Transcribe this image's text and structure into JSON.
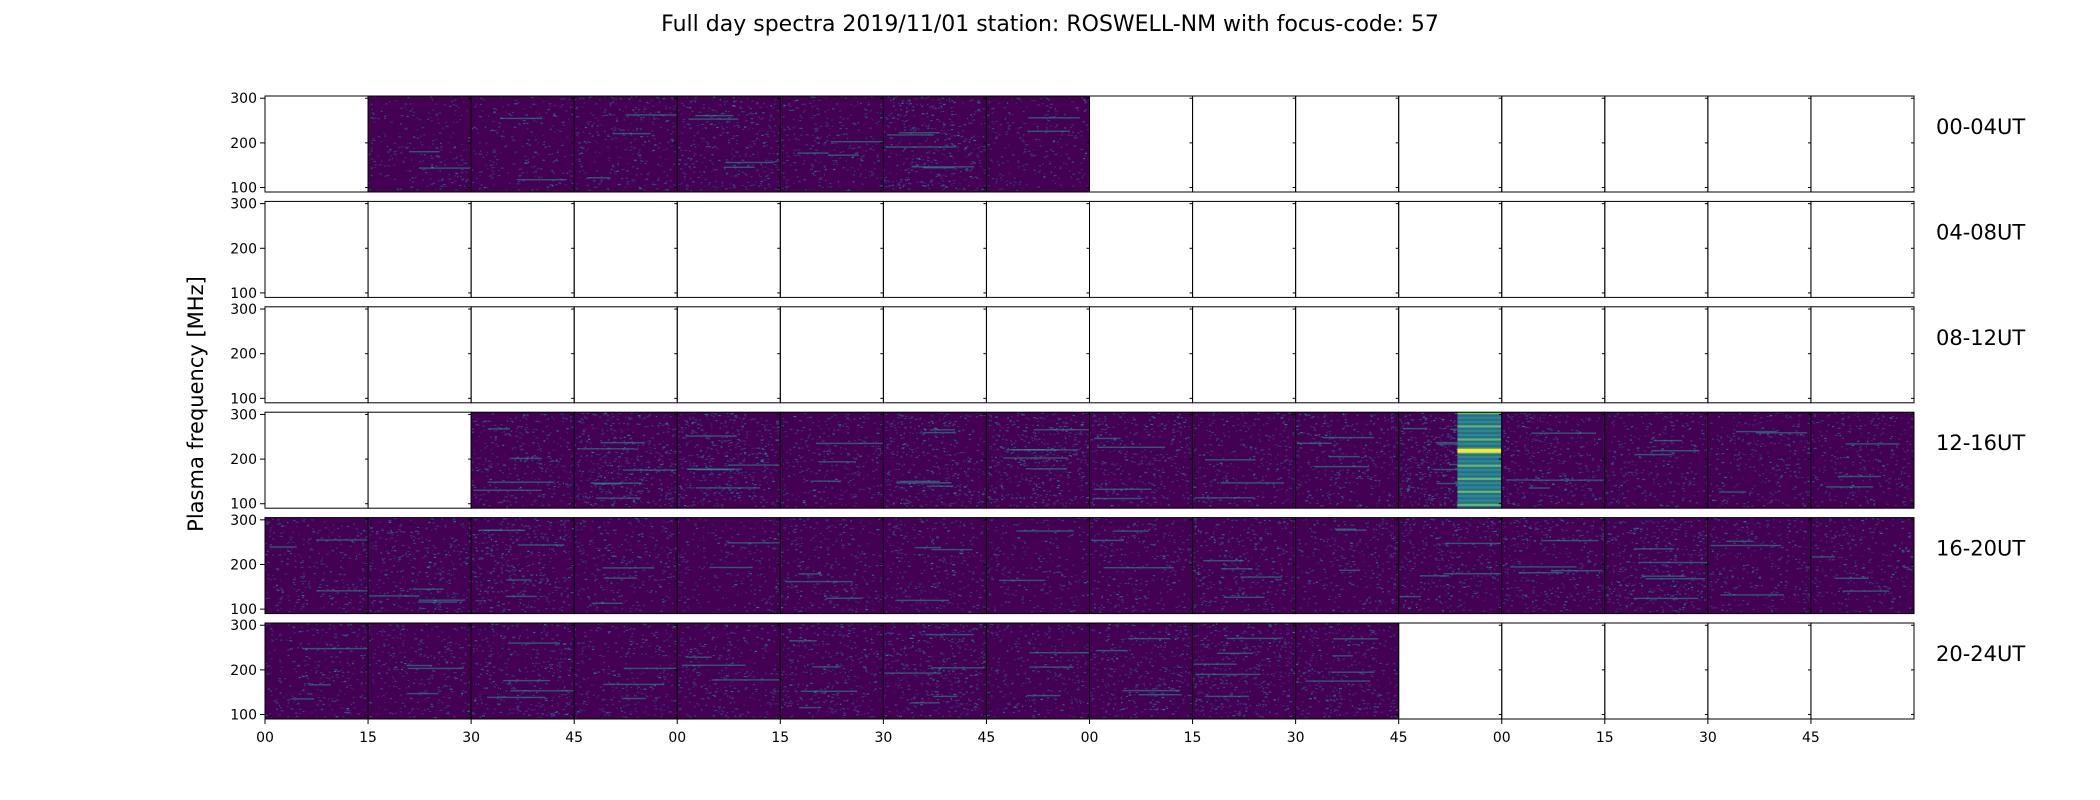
{
  "chart_data": {
    "type": "heatmap",
    "title": "Full day spectra 2019/11/01 station: ROSWELL-NM with focus-code: 57",
    "ylabel": "Plasma frequency [MHz]",
    "xlabel": "",
    "yticks": [
      "300",
      "200",
      "100"
    ],
    "ylim": [
      90,
      305
    ],
    "xtick_labels": [
      "00",
      "15",
      "30",
      "45",
      "00",
      "15",
      "30",
      "45",
      "00",
      "15",
      "30",
      "45",
      "00",
      "15",
      "30",
      "45"
    ],
    "panels_per_row": 16,
    "panel_minutes": 15,
    "rows": [
      {
        "label": "00-04UT",
        "filled": [
          0,
          1,
          1,
          1,
          1,
          1,
          1,
          1,
          0,
          0,
          0,
          0,
          0,
          0,
          0,
          0
        ],
        "variant": [
          0,
          0,
          0,
          1,
          2,
          1,
          3,
          0,
          0,
          0,
          0,
          0,
          0,
          0,
          0,
          0
        ]
      },
      {
        "label": "04-08UT",
        "filled": [
          0,
          0,
          0,
          0,
          0,
          0,
          0,
          0,
          0,
          0,
          0,
          0,
          0,
          0,
          0,
          0
        ],
        "variant": [
          0,
          0,
          0,
          0,
          0,
          0,
          0,
          0,
          0,
          0,
          0,
          0,
          0,
          0,
          0,
          0
        ]
      },
      {
        "label": "08-12UT",
        "filled": [
          0,
          0,
          0,
          0,
          0,
          0,
          0,
          0,
          0,
          0,
          0,
          0,
          0,
          0,
          0,
          0
        ],
        "variant": [
          0,
          0,
          0,
          0,
          0,
          0,
          0,
          0,
          0,
          0,
          0,
          0,
          0,
          0,
          0,
          0
        ]
      },
      {
        "label": "12-16UT",
        "filled": [
          0,
          0,
          1,
          1,
          1,
          1,
          1,
          1,
          1,
          1,
          1,
          1,
          1,
          1,
          1,
          1
        ],
        "variant": [
          0,
          0,
          2,
          4,
          4,
          1,
          3,
          4,
          2,
          1,
          2,
          5,
          2,
          1,
          1,
          1
        ]
      },
      {
        "label": "16-20UT",
        "filled": [
          1,
          1,
          1,
          1,
          1,
          1,
          1,
          1,
          1,
          1,
          1,
          1,
          1,
          1,
          1,
          1
        ],
        "variant": [
          1,
          2,
          3,
          1,
          0,
          1,
          1,
          0,
          1,
          2,
          1,
          2,
          2,
          3,
          1,
          1
        ]
      },
      {
        "label": "20-24UT",
        "filled": [
          1,
          1,
          1,
          1,
          1,
          1,
          1,
          1,
          1,
          1,
          1,
          0,
          0,
          0,
          0,
          0
        ],
        "variant": [
          1,
          1,
          2,
          1,
          1,
          2,
          3,
          1,
          2,
          3,
          2,
          0,
          0,
          0,
          0,
          0
        ]
      }
    ],
    "colors": {
      "background": "#440154",
      "speckle": "#3b528b",
      "speckle_bright": "#21918c",
      "hot": "#5ec962",
      "peak": "#fde725"
    }
  }
}
